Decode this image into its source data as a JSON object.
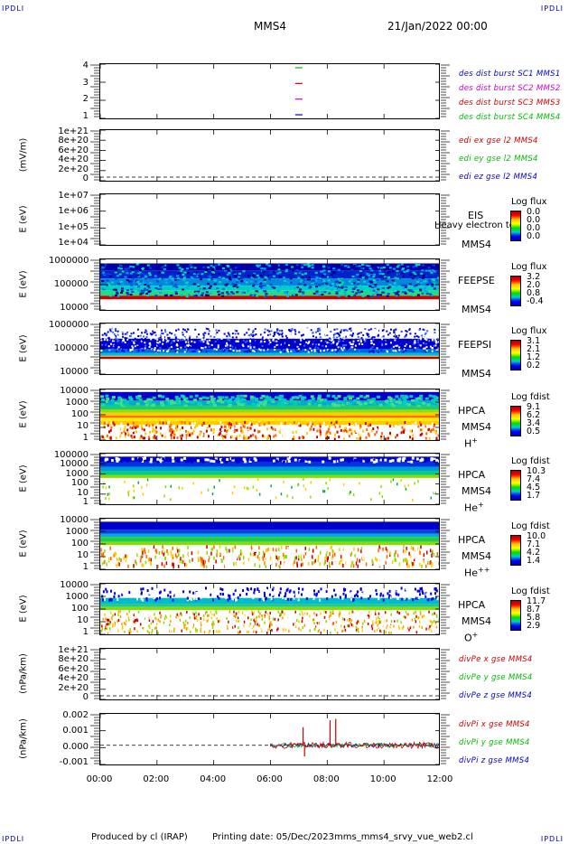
{
  "header": {
    "corner_label": "IPDLI",
    "spacecraft": "MMS4",
    "datetime": "21/Jan/2022 00:00"
  },
  "footer": {
    "produced_by": "Produced by cl (IRAP)",
    "printing_date": "Printing date: 05/Dec/2023",
    "script_name": "mms_mms4_srvy_vue_web2.cl"
  },
  "chart_data": {
    "type": "multi-panel time series / spectrogram",
    "x_ticks": [
      "00:00",
      "02:00",
      "04:00",
      "06:00",
      "08:00",
      "10:00",
      "12:00"
    ],
    "x_range_hours": [
      0,
      12
    ],
    "panels": [
      {
        "id": "burst",
        "ylabel": "",
        "yticks": [
          "4",
          "3",
          "2",
          "1"
        ],
        "legend": [
          {
            "label": "des dist burst SC1 MMS1",
            "color": "#0000cc"
          },
          {
            "label": "des dist burst SC2 MMS2",
            "color": "#cc00cc"
          },
          {
            "label": "des dist burst SC3 MMS3",
            "color": "#cc0000"
          },
          {
            "label": "des dist burst SC4 MMS4",
            "color": "#00bb00"
          }
        ],
        "marks": [
          {
            "level": 4,
            "t_hours": 7.0,
            "color": "#00bb00"
          },
          {
            "level": 3,
            "t_hours": 7.0,
            "color": "#cc0000"
          },
          {
            "level": 2,
            "t_hours": 7.0,
            "color": "#cc00cc"
          },
          {
            "level": 1,
            "t_hours": 7.0,
            "color": "#0000cc"
          }
        ]
      },
      {
        "id": "edi",
        "ylabel": "(mV/m)",
        "yticks": [
          "1e+21",
          "8e+20",
          "6e+20",
          "4e+20",
          "2e+20",
          "0"
        ],
        "legend": [
          {
            "label": "edi ex gse l2 MMS4",
            "color": "#cc0000"
          },
          {
            "label": "edi ey gse l2 MMS4",
            "color": "#00bb00"
          },
          {
            "label": "edi ez gse l2 MMS4",
            "color": "#0000cc"
          }
        ]
      },
      {
        "id": "eis",
        "ylabel": "E (eV)",
        "yticks": [
          "1e+07",
          "1e+06",
          "1e+05",
          "1e+04"
        ],
        "instrument": "EIS",
        "spacecraft": "MMS4",
        "overlay_text": "Heavy electron to",
        "colorbar": {
          "title": "Log flux",
          "values": [
            "0.0",
            "0.0",
            "0.0",
            "0.0"
          ]
        }
      },
      {
        "id": "feepse",
        "ylabel": "E (eV)",
        "yticks": [
          "1000000",
          "100000",
          "10000"
        ],
        "instrument": "FEEPSE",
        "spacecraft": "MMS4",
        "colorbar": {
          "title": "Log flux",
          "values": [
            "3.2",
            "2.0",
            "0.8",
            "-0.4"
          ]
        }
      },
      {
        "id": "feepsi",
        "ylabel": "E (eV)",
        "yticks": [
          "1000000",
          "100000",
          "10000"
        ],
        "instrument": "FEEPSI",
        "spacecraft": "MMS4",
        "colorbar": {
          "title": "Log flux",
          "values": [
            "3.1",
            "2.1",
            "1.2",
            "0.2"
          ]
        }
      },
      {
        "id": "hpca_h",
        "ylabel": "E (eV)",
        "yticks": [
          "10000",
          "1000",
          "100",
          "10",
          "1"
        ],
        "instrument": "HPCA",
        "spacecraft": "MMS4",
        "species": "H",
        "species_sup": "+",
        "colorbar": {
          "title": "Log fdist",
          "values": [
            "9.1",
            "6.2",
            "3.4",
            "0.5"
          ]
        }
      },
      {
        "id": "hpca_he",
        "ylabel": "E (eV)",
        "yticks": [
          "100000",
          "10000",
          "1000",
          "100",
          "10",
          "1"
        ],
        "instrument": "HPCA",
        "spacecraft": "MMS4",
        "species": "He",
        "species_sup": "+",
        "colorbar": {
          "title": "Log fdist",
          "values": [
            "10.3",
            "7.4",
            "4.5",
            "1.7"
          ]
        }
      },
      {
        "id": "hpca_hepp",
        "ylabel": "E (eV)",
        "yticks": [
          "10000",
          "1000",
          "100",
          "10",
          "1"
        ],
        "instrument": "HPCA",
        "spacecraft": "MMS4",
        "species": "He",
        "species_sup": "++",
        "colorbar": {
          "title": "Log fdist",
          "values": [
            "10.0",
            "7.1",
            "4.2",
            "1.4"
          ]
        }
      },
      {
        "id": "hpca_o",
        "ylabel": "E (eV)",
        "yticks": [
          "10000",
          "1000",
          "100",
          "10",
          "1"
        ],
        "instrument": "HPCA",
        "spacecraft": "MMS4",
        "species": "O",
        "species_sup": "+",
        "colorbar": {
          "title": "Log fdist",
          "values": [
            "11.7",
            "8.7",
            "5.8",
            "2.9"
          ]
        }
      },
      {
        "id": "divpe",
        "ylabel": "(nPa/km)",
        "yticks": [
          "1e+21",
          "8e+20",
          "6e+20",
          "4e+20",
          "2e+20",
          "0"
        ],
        "legend": [
          {
            "label": "divPe x gse MMS4",
            "color": "#cc0000"
          },
          {
            "label": "divPe y gse MMS4",
            "color": "#00bb00"
          },
          {
            "label": "divPe z gse MMS4",
            "color": "#0000cc"
          }
        ]
      },
      {
        "id": "divpi",
        "ylabel": "(nPa/km)",
        "yticks": [
          "0.002",
          "0.001",
          "0.000",
          "-0.001"
        ],
        "legend": [
          {
            "label": "divPi x gse MMS4",
            "color": "#cc0000"
          },
          {
            "label": "divPi y gse MMS4",
            "color": "#00bb00"
          },
          {
            "label": "divPi z gse MMS4",
            "color": "#0000cc"
          }
        ],
        "data_start_hours": 6.0,
        "spikes": [
          {
            "t_hours": 7.15,
            "value": 0.0013
          },
          {
            "t_hours": 7.2,
            "value": -0.0008
          },
          {
            "t_hours": 8.1,
            "value": 0.0018
          },
          {
            "t_hours": 8.3,
            "value": 0.0019
          }
        ]
      }
    ]
  }
}
